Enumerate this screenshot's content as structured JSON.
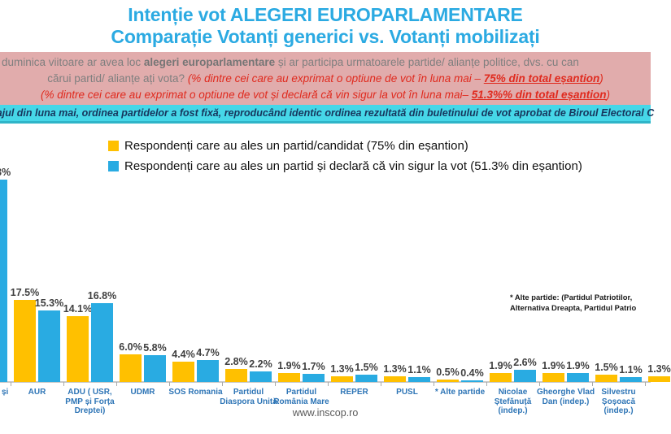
{
  "title": {
    "line1": "Intenție vot ALEGERI EUROPARLAMENTARE",
    "line2": "Comparație Votanți generici vs. Votanți mobilizați"
  },
  "question_banner": {
    "line1_prefix": "duminica viitoare ar avea loc ",
    "line1_bold": "alegeri europarlamentare",
    "line1_suffix": " și ar participa urmatoarele partide/ alianțe politice, dvs. cu can",
    "line2_prefix": "cărui partid/ alianțe ați vota? ",
    "line2_red": "(% dintre cei care au exprimat o optiune de vot în luna mai – ",
    "line2_highlight": "75% din total eșantion",
    "line2_close": ")",
    "line3_red": "(% dintre cei care au exprimat o optiune de vot și declară că vin sigur la vot în luna mai– ",
    "line3_highlight": "51.3%% din total eșantion",
    "line3_close": ")"
  },
  "method_banner": {
    "text": "ajul din luna mai, ordinea partidelor a fost fixă, reproducând identic ordinea rezultată din buletinului de vot aprobat de Biroul Electoral C"
  },
  "legend": [
    {
      "label": "Respondenți care au ales un partid/candidat (75% din eșantion)",
      "color": "#FFC000"
    },
    {
      "label": "Respondenți care au ales un partid și declară că vin sigur la vot (51.3% din eșantion)",
      "color": "#29ABE2"
    }
  ],
  "note": {
    "line1": "* Alte partide: (Partidul Patriotilor,",
    "line2": "Alternativa Dreapta, Partidul Patrio"
  },
  "footer": {
    "website": "www.inscop.ro"
  },
  "chart_data": {
    "type": "bar",
    "title": "Intenție vot ALEGERI EUROPARLAMENTARE — Comparație Votanți generici vs. Votanți mobilizați",
    "categories": [
      "și",
      "AUR",
      "ADU ( USR, PMP și Forța Dreptei)",
      "UDMR",
      "SOS Romania",
      "Partidul Diaspora Unită",
      "Partidul România Mare",
      "REPER",
      "PUSL",
      "* Alte partide",
      "Nicolae Ștefănuță (indep.)",
      "Gheorghe Vlad Dan (indep.)",
      "Silvestru Șoșoacă (indep.)",
      ""
    ],
    "series": [
      {
        "name": "Respondenți care au ales un partid/candidat (75% din eșantion)",
        "color": "#FFC000",
        "values": [
          null,
          17.5,
          14.1,
          6.0,
          4.4,
          2.8,
          1.9,
          1.3,
          1.3,
          0.5,
          1.9,
          1.9,
          1.5,
          1.3
        ]
      },
      {
        "name": "Respondenți care au ales un partid și declară că vin sigur la vot (51.3% din eșantion)",
        "color": "#29ABE2",
        "values": [
          43.3,
          15.3,
          16.8,
          5.8,
          4.7,
          2.2,
          1.7,
          1.5,
          1.1,
          0.4,
          2.6,
          1.9,
          1.1,
          null
        ]
      }
    ],
    "ylim": [
      0,
      47
    ],
    "grid": false,
    "legend_position": "top",
    "value_labels": true,
    "notes": "Leftmost and rightmost categories are clipped at the image edges; leftmost blue bar value estimated from pixel height (its label is only visible as '3%')."
  }
}
